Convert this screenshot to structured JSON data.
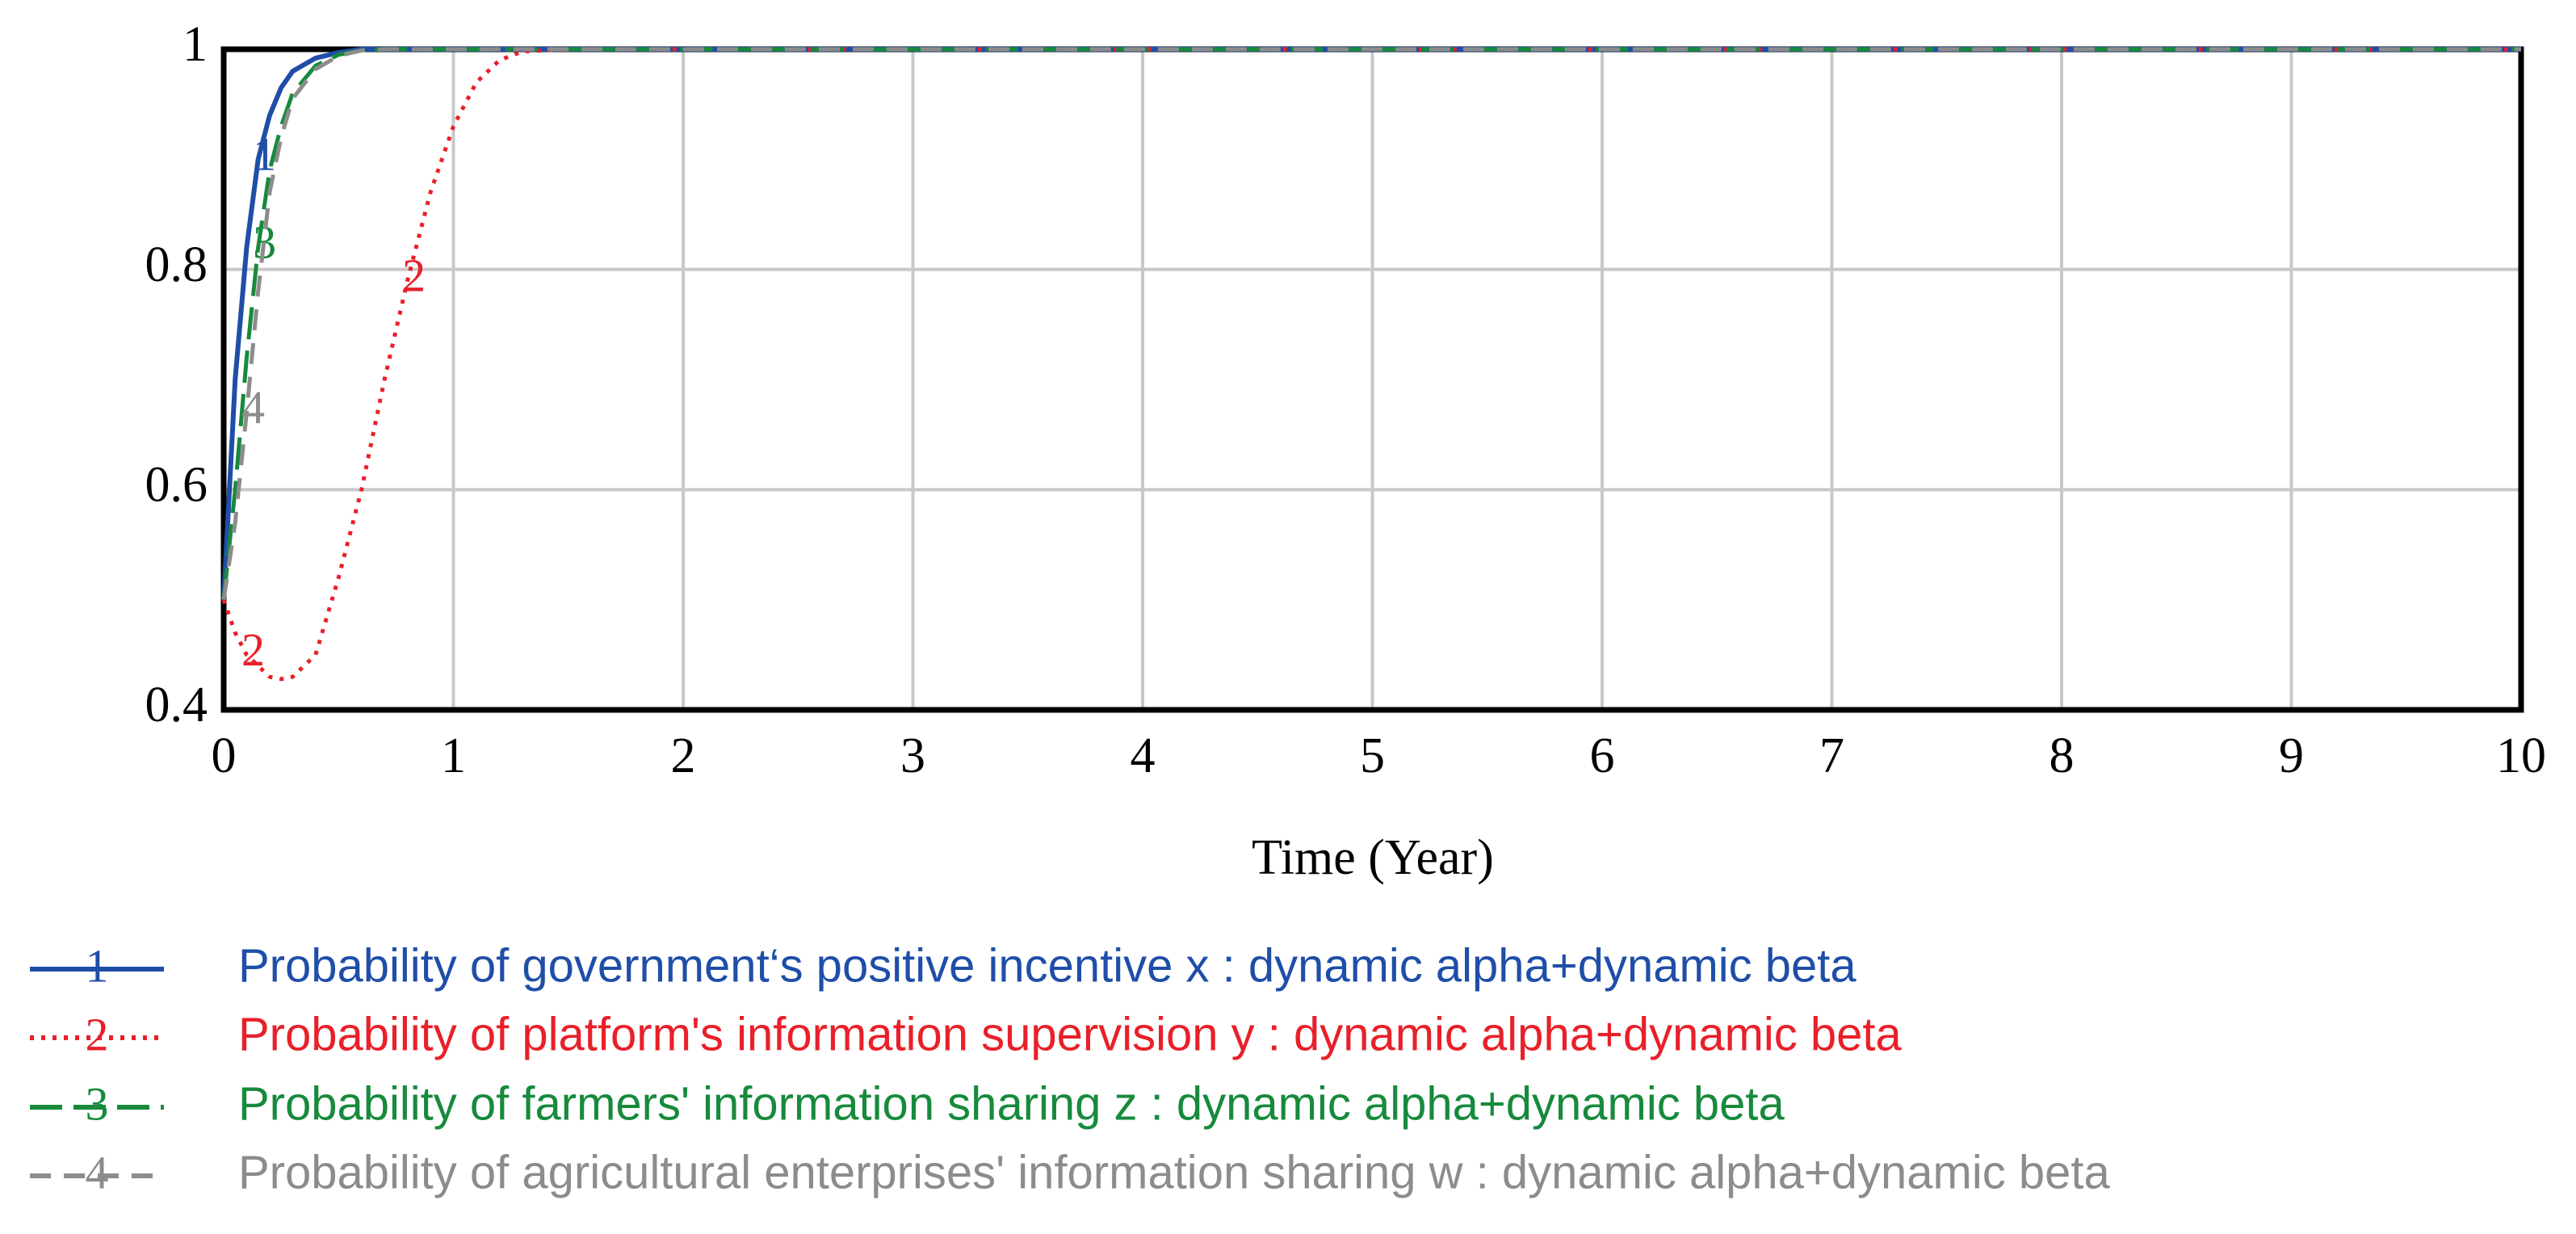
{
  "chart_data": {
    "type": "line",
    "x_label": "Time (Year)",
    "x": [
      0,
      0.05,
      0.1,
      0.15,
      0.2,
      0.25,
      0.3,
      0.4,
      0.5,
      0.6,
      0.7,
      0.8,
      0.9,
      1,
      1.1,
      1.2,
      1.3,
      1.5,
      2,
      10
    ],
    "series": [
      {
        "name": "Probability of government‘s positive incentive x : dynamic alpha+dynamic beta",
        "marker": "1",
        "color": "#1f4ea8",
        "style": "solid",
        "values": [
          0.5,
          0.7,
          0.82,
          0.9,
          0.94,
          0.965,
          0.98,
          0.992,
          0.997,
          1,
          1,
          1,
          1,
          1,
          1,
          1,
          1,
          1,
          1,
          1
        ]
      },
      {
        "name": "Probability of platform's information supervision y : dynamic alpha+dynamic beta",
        "marker": "2",
        "color": "#e8202a",
        "style": "dotted",
        "values": [
          0.5,
          0.47,
          0.45,
          0.44,
          0.43,
          0.428,
          0.43,
          0.45,
          0.52,
          0.6,
          0.7,
          0.79,
          0.87,
          0.93,
          0.97,
          0.99,
          0.998,
          1,
          1,
          1
        ]
      },
      {
        "name": "Probability of farmers' information sharing z : dynamic alpha+dynamic beta",
        "marker": "3",
        "color": "#178a3c",
        "style": "longdash",
        "values": [
          0.5,
          0.6,
          0.72,
          0.82,
          0.89,
          0.93,
          0.96,
          0.985,
          0.995,
          0.999,
          1,
          1,
          1,
          1,
          1,
          1,
          1,
          1,
          1,
          1
        ]
      },
      {
        "name": "Probability of agricultural enterprises' information sharing w : dynamic alpha+dynamic beta",
        "marker": "4",
        "color": "#8c8c8c",
        "style": "dashed",
        "values": [
          0.5,
          0.57,
          0.67,
          0.78,
          0.87,
          0.92,
          0.955,
          0.982,
          0.994,
          0.999,
          1,
          1,
          1,
          1,
          1,
          1,
          1,
          1,
          1,
          1
        ]
      }
    ],
    "xlim": [
      0,
      10
    ],
    "xticks": [
      0,
      1,
      2,
      3,
      4,
      5,
      6,
      7,
      8,
      9,
      10
    ],
    "ylim": [
      0.4,
      1
    ],
    "yticks": [
      0.4,
      0.6,
      0.8,
      1
    ],
    "grid": true
  }
}
